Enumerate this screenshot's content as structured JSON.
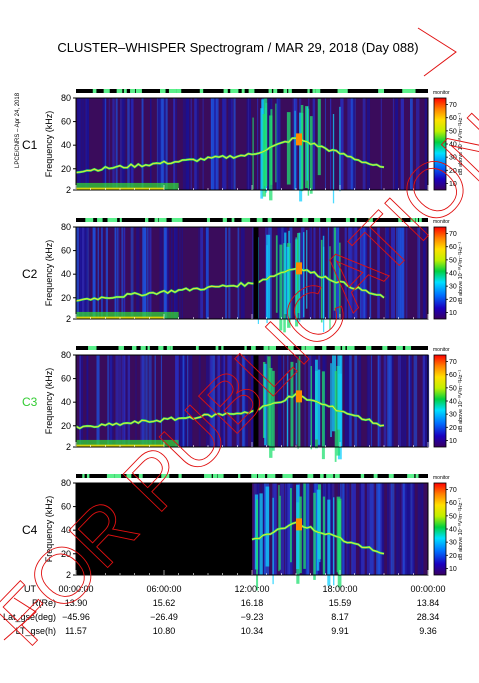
{
  "chart_data": {
    "type": "heatmap",
    "title": "CLUSTER–WHISPER Spectrogram / MAR 29, 2018 (Day 088)",
    "side_note": "LPCE/CNRS – Apr 24, 2018",
    "watermark": "FOR PUBLICATION",
    "y_label": "Frequency (kHz)",
    "y_ticks": [
      2,
      20,
      40,
      60,
      80
    ],
    "y_range": [
      2,
      80
    ],
    "colorbar": {
      "label": "dB above 10⁻⁸V²m⁻²Hz⁻¹",
      "ticks": [
        10,
        20,
        30,
        40,
        50,
        60,
        70
      ],
      "range": [
        5,
        75
      ],
      "top_label": "monitor"
    },
    "panels": [
      {
        "name": "C1",
        "color": "#000000",
        "has_data": true
      },
      {
        "name": "C2",
        "color": "#000000",
        "has_data": true
      },
      {
        "name": "C3",
        "color": "#33cc33",
        "has_data": true
      },
      {
        "name": "C4",
        "color": "#000000",
        "has_data": true
      }
    ],
    "x_axis": {
      "label": "UT",
      "ticks": [
        "00:00:00",
        "06:00:00",
        "12:00:00",
        "18:00:00",
        "00:00:00"
      ],
      "range_hours": [
        0,
        24
      ]
    },
    "ephemeris": [
      {
        "label": "R(Re)",
        "values": [
          "13.90",
          "15.62",
          "16.18",
          "15.59",
          "13.84"
        ]
      },
      {
        "label": "Lat_gse(deg)",
        "values": [
          "−45.96",
          "−26.49",
          "−9.23",
          "8.17",
          "28.34"
        ]
      },
      {
        "label": "LT_gse(h)",
        "values": [
          "11.57",
          "10.80",
          "10.34",
          "9.91",
          "9.36"
        ]
      }
    ]
  }
}
